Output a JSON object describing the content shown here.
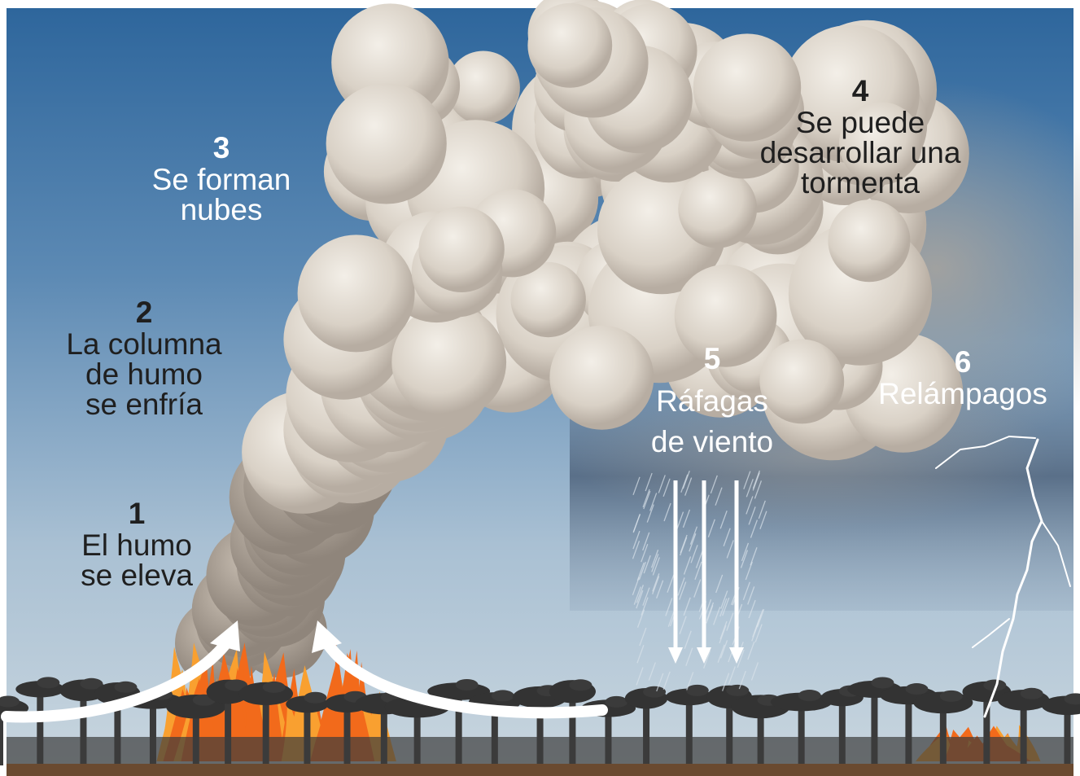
{
  "steps": [
    {
      "number": "1",
      "lines": [
        "El humo",
        "se eleva"
      ]
    },
    {
      "number": "2",
      "lines": [
        "La columna",
        "de humo",
        "se enfría"
      ]
    },
    {
      "number": "3",
      "lines": [
        "Se forman",
        "nubes"
      ]
    },
    {
      "number": "4",
      "lines": [
        "Se puede",
        "desarrollar una",
        "tormenta"
      ]
    },
    {
      "number": "5",
      "lines": [
        "Ráfagas",
        "de viento"
      ]
    },
    {
      "number": "6",
      "lines": [
        "Relámpagos"
      ]
    }
  ]
}
